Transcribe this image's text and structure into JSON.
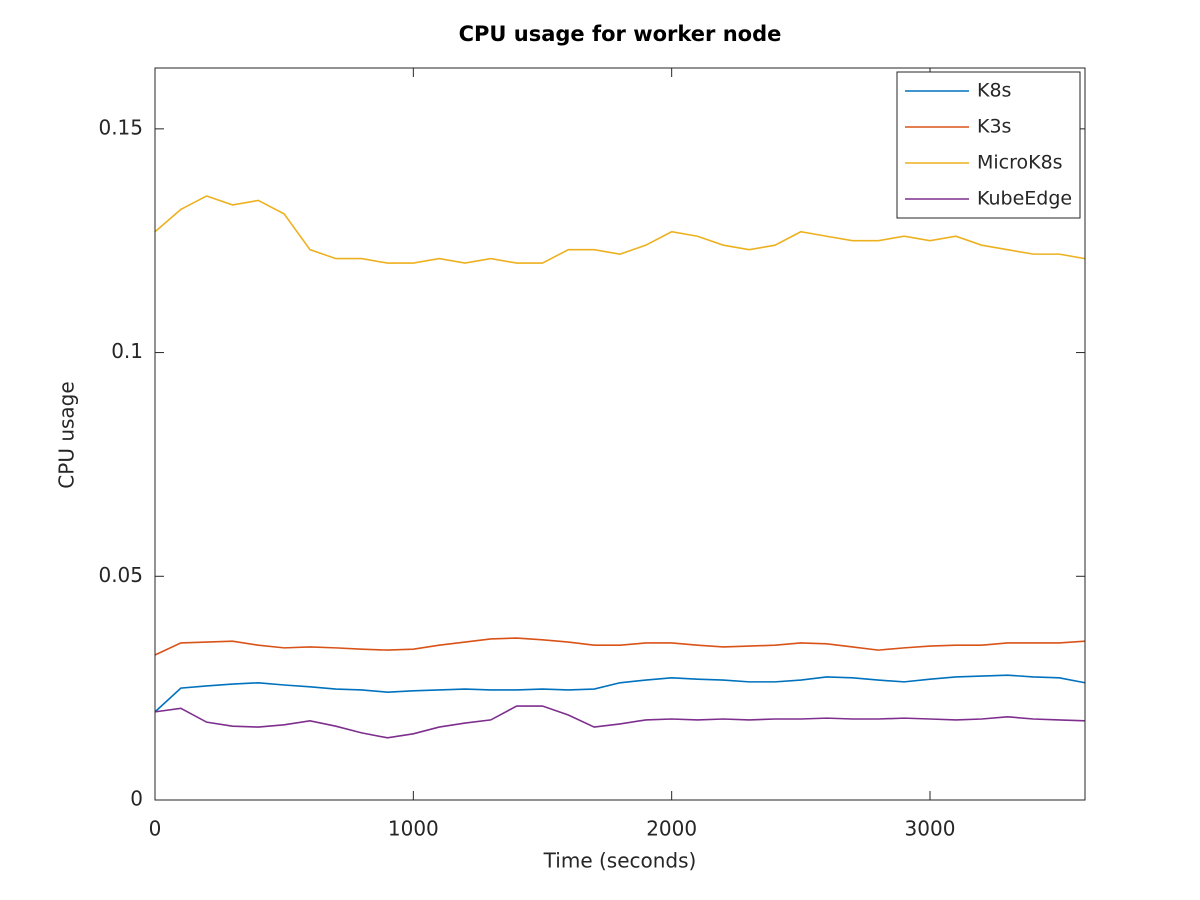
{
  "chart_data": {
    "type": "line",
    "title": "CPU usage for worker node",
    "xlabel": "Time (seconds)",
    "ylabel": "CPU usage",
    "x": [
      0,
      100,
      200,
      300,
      400,
      500,
      600,
      700,
      800,
      900,
      1000,
      1100,
      1200,
      1300,
      1400,
      1500,
      1600,
      1700,
      1800,
      1900,
      2000,
      2100,
      2200,
      2300,
      2400,
      2500,
      2600,
      2700,
      2800,
      2900,
      3000,
      3100,
      3200,
      3300,
      3400,
      3500,
      3600
    ],
    "series": [
      {
        "name": "K8s",
        "color": "#0072bd",
        "values": [
          0.0197,
          0.025,
          0.0255,
          0.0259,
          0.0262,
          0.0257,
          0.0253,
          0.0248,
          0.0246,
          0.0241,
          0.0244,
          0.0246,
          0.0248,
          0.0246,
          0.0246,
          0.0248,
          0.0246,
          0.0248,
          0.0262,
          0.0268,
          0.0273,
          0.027,
          0.0268,
          0.0264,
          0.0264,
          0.0268,
          0.0275,
          0.0273,
          0.0268,
          0.0264,
          0.027,
          0.0275,
          0.0277,
          0.0279,
          0.0275,
          0.0273,
          0.0262
        ]
      },
      {
        "name": "K3s",
        "color": "#d95319",
        "values": [
          0.0324,
          0.0351,
          0.0353,
          0.0355,
          0.0346,
          0.034,
          0.0342,
          0.034,
          0.0337,
          0.0335,
          0.0337,
          0.0346,
          0.0353,
          0.036,
          0.0362,
          0.0358,
          0.0353,
          0.0346,
          0.0346,
          0.0351,
          0.0351,
          0.0346,
          0.0342,
          0.0344,
          0.0346,
          0.0351,
          0.0349,
          0.0342,
          0.0335,
          0.034,
          0.0344,
          0.0346,
          0.0346,
          0.0351,
          0.0351,
          0.0351,
          0.0355
        ]
      },
      {
        "name": "MicroK8s",
        "color": "#edb120",
        "values": [
          0.127,
          0.132,
          0.135,
          0.133,
          0.134,
          0.131,
          0.123,
          0.121,
          0.121,
          0.12,
          0.12,
          0.121,
          0.12,
          0.121,
          0.12,
          0.12,
          0.123,
          0.123,
          0.122,
          0.124,
          0.127,
          0.126,
          0.124,
          0.123,
          0.124,
          0.127,
          0.126,
          0.125,
          0.125,
          0.126,
          0.125,
          0.126,
          0.124,
          0.123,
          0.122,
          0.122,
          0.121
        ]
      },
      {
        "name": "KubeEdge",
        "color": "#7e2f8e",
        "values": [
          0.0197,
          0.0205,
          0.0174,
          0.0165,
          0.0163,
          0.0168,
          0.0177,
          0.0165,
          0.015,
          0.0139,
          0.0148,
          0.0163,
          0.0172,
          0.0179,
          0.021,
          0.021,
          0.019,
          0.0163,
          0.017,
          0.0179,
          0.0181,
          0.0179,
          0.0181,
          0.0179,
          0.0181,
          0.0181,
          0.0183,
          0.0181,
          0.0181,
          0.0183,
          0.0181,
          0.0179,
          0.0181,
          0.0186,
          0.0181,
          0.0179,
          0.0177
        ]
      }
    ],
    "xlim": [
      0,
      3600
    ],
    "xticks": [
      0,
      1000,
      2000,
      3000
    ],
    "ylim": [
      0,
      0.1636
    ],
    "yticks": [
      0,
      0.05,
      0.1,
      0.15
    ],
    "grid": false,
    "legend": "northeast"
  }
}
